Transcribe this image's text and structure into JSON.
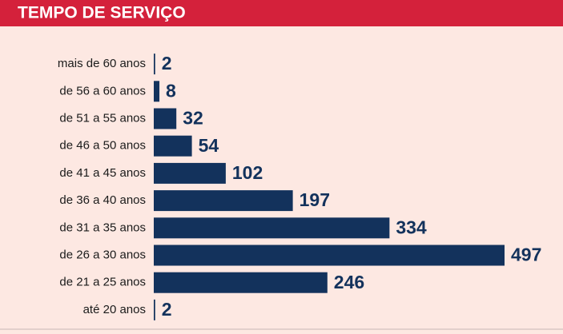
{
  "chart_data": {
    "type": "bar",
    "orientation": "horizontal",
    "title": "TEMPO DE SERVIÇO",
    "categories": [
      "mais de 60 anos",
      "de 56 a 60 anos",
      "de 51 a 55 anos",
      "de 46 a 50 anos",
      "de 41 a 45 anos",
      "de 36 a 40 anos",
      "de 31 a 35 anos",
      "de 26 a 30 anos",
      "de 21 a 25 anos",
      "até 20 anos"
    ],
    "values": [
      2,
      8,
      32,
      54,
      102,
      197,
      334,
      497,
      246,
      2
    ],
    "color": "#13325c"
  }
}
